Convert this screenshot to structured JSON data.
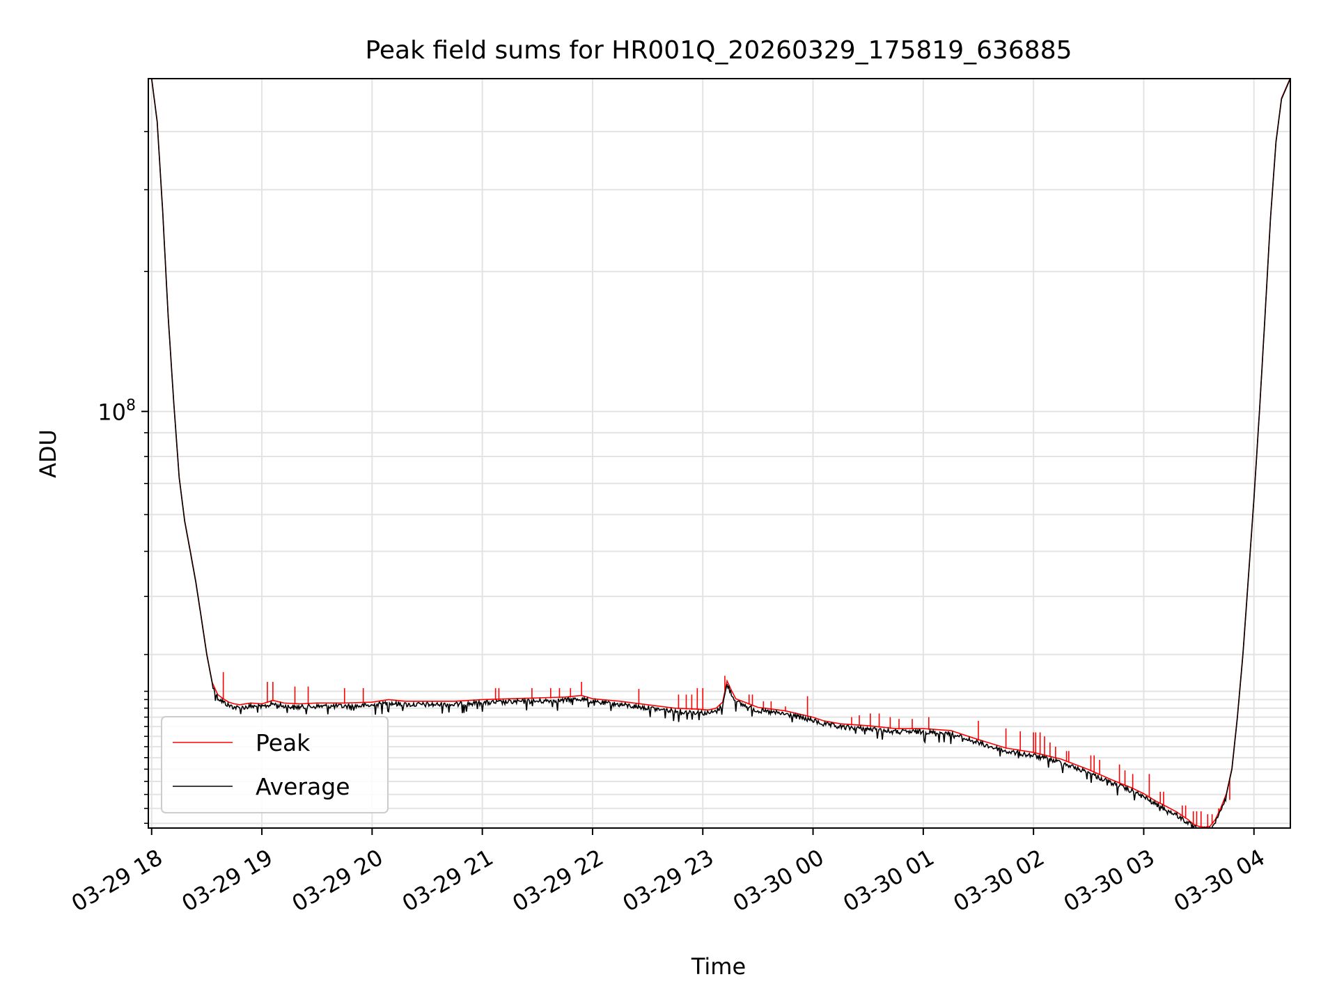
{
  "chart_data": {
    "type": "line",
    "title": "Peak field sums for HR001Q_20260329_175819_636885",
    "xlabel": "Time",
    "ylabel": "ADU",
    "yscale": "log",
    "ylim": [
      12700000.0,
      520000000.0
    ],
    "xlim_hours": [
      -0.03,
      10.33
    ],
    "grid": true,
    "x_ticks": [
      {
        "hour": 0,
        "label": "03-29 18"
      },
      {
        "hour": 1,
        "label": "03-29 19"
      },
      {
        "hour": 2,
        "label": "03-29 20"
      },
      {
        "hour": 3,
        "label": "03-29 21"
      },
      {
        "hour": 4,
        "label": "03-29 22"
      },
      {
        "hour": 5,
        "label": "03-29 23"
      },
      {
        "hour": 6,
        "label": "03-30 00"
      },
      {
        "hour": 7,
        "label": "03-30 01"
      },
      {
        "hour": 8,
        "label": "03-30 02"
      },
      {
        "hour": 9,
        "label": "03-30 03"
      },
      {
        "hour": 10,
        "label": "03-30 04"
      }
    ],
    "y_major_ticks": [
      {
        "value": 100000000,
        "base": "10",
        "exp": "8"
      }
    ],
    "y_minor_ticks": [
      13000000,
      14000000,
      15000000,
      16000000,
      17000000,
      18000000,
      19000000,
      20000000,
      21000000,
      22000000,
      23000000,
      24000000,
      25000000,
      30000000,
      40000000,
      50000000,
      60000000,
      70000000,
      80000000,
      90000000,
      200000000,
      300000000,
      400000000
    ],
    "legend": {
      "placement": "lower-left",
      "entries": [
        {
          "label": "Peak",
          "color": "#ff0000"
        },
        {
          "label": "Average",
          "color": "#000000"
        }
      ]
    },
    "series": [
      {
        "name": "Average",
        "color": "#000000",
        "hours": [
          -0.03,
          0.0,
          0.05,
          0.1,
          0.15,
          0.2,
          0.25,
          0.3,
          0.35,
          0.4,
          0.45,
          0.5,
          0.55,
          0.6,
          0.65,
          0.7,
          0.75,
          0.8,
          0.9,
          1.0,
          1.1,
          1.2,
          1.35,
          1.5,
          1.75,
          2.0,
          2.15,
          2.3,
          2.5,
          2.75,
          3.0,
          3.25,
          3.5,
          3.75,
          3.9,
          4.0,
          4.25,
          4.5,
          4.75,
          4.95,
          5.05,
          5.12,
          5.18,
          5.22,
          5.26,
          5.3,
          5.5,
          5.75,
          6.0,
          6.1,
          6.25,
          6.5,
          6.75,
          7.0,
          7.25,
          7.5,
          7.75,
          8.0,
          8.25,
          8.5,
          8.7,
          8.9,
          9.0,
          9.1,
          9.2,
          9.3,
          9.4,
          9.45,
          9.5,
          9.55,
          9.6,
          9.65,
          9.7,
          9.75,
          9.8,
          9.85,
          9.9,
          9.95,
          10.0,
          10.05,
          10.1,
          10.15,
          10.2,
          10.25,
          10.33
        ],
        "values": [
          520000000,
          520000000,
          420000000,
          270000000,
          160000000,
          105000000,
          72000000,
          58000000,
          50000000,
          43000000,
          36000000,
          30000000,
          26000000,
          24500000,
          24000000,
          23600000,
          23400000,
          23300000,
          23500000,
          23400000,
          23800000,
          23500000,
          23400000,
          23500000,
          23500000,
          23600000,
          23900000,
          23700000,
          23700000,
          23700000,
          23900000,
          24000000,
          24100000,
          24200000,
          24400000,
          24000000,
          23700000,
          23300000,
          22900000,
          22800000,
          22700000,
          22900000,
          23600000,
          26200000,
          25000000,
          24000000,
          23000000,
          22600000,
          21900000,
          21500000,
          21200000,
          21000000,
          20700000,
          20700000,
          20500000,
          19600000,
          18800000,
          18400000,
          17800000,
          16900000,
          16100000,
          15400000,
          15000000,
          14500000,
          14100000,
          13700000,
          13200000,
          12900000,
          12750000,
          12700000,
          12750000,
          13200000,
          14000000,
          15000000,
          17000000,
          22000000,
          30000000,
          44000000,
          65000000,
          100000000,
          160000000,
          260000000,
          380000000,
          470000000,
          520000000
        ]
      },
      {
        "name": "Peak",
        "color": "#ff0000",
        "spikes": [
          {
            "hour": 0.65,
            "value": 27500000
          },
          {
            "hour": 1.05,
            "value": 26200000
          },
          {
            "hour": 1.1,
            "value": 26200000
          },
          {
            "hour": 1.3,
            "value": 25600000
          },
          {
            "hour": 1.42,
            "value": 25600000
          },
          {
            "hour": 1.75,
            "value": 25400000
          },
          {
            "hour": 1.92,
            "value": 25400000
          },
          {
            "hour": 3.12,
            "value": 25400000
          },
          {
            "hour": 3.15,
            "value": 25400000
          },
          {
            "hour": 3.45,
            "value": 25400000
          },
          {
            "hour": 3.62,
            "value": 25400000
          },
          {
            "hour": 3.7,
            "value": 25400000
          },
          {
            "hour": 3.8,
            "value": 25400000
          },
          {
            "hour": 3.9,
            "value": 26200000
          },
          {
            "hour": 4.42,
            "value": 25300000
          },
          {
            "hour": 4.78,
            "value": 24600000
          },
          {
            "hour": 4.85,
            "value": 24600000
          },
          {
            "hour": 4.9,
            "value": 24600000
          },
          {
            "hour": 4.95,
            "value": 25400000
          },
          {
            "hour": 5.0,
            "value": 25400000
          },
          {
            "hour": 5.2,
            "value": 27000000
          },
          {
            "hour": 5.42,
            "value": 24600000
          },
          {
            "hour": 5.45,
            "value": 24600000
          },
          {
            "hour": 5.55,
            "value": 23800000
          },
          {
            "hour": 5.62,
            "value": 23800000
          },
          {
            "hour": 5.75,
            "value": 23200000
          },
          {
            "hour": 5.95,
            "value": 24400000
          },
          {
            "hour": 6.35,
            "value": 22000000
          },
          {
            "hour": 6.42,
            "value": 22200000
          },
          {
            "hour": 6.52,
            "value": 22400000
          },
          {
            "hour": 6.6,
            "value": 22400000
          },
          {
            "hour": 6.7,
            "value": 22000000
          },
          {
            "hour": 6.78,
            "value": 21800000
          },
          {
            "hour": 6.9,
            "value": 21800000
          },
          {
            "hour": 7.05,
            "value": 22000000
          },
          {
            "hour": 7.5,
            "value": 21600000
          },
          {
            "hour": 7.75,
            "value": 20800000
          },
          {
            "hour": 7.88,
            "value": 20500000
          },
          {
            "hour": 8.0,
            "value": 20400000
          },
          {
            "hour": 8.02,
            "value": 20400000
          },
          {
            "hour": 8.06,
            "value": 20400000
          },
          {
            "hour": 8.1,
            "value": 20000000
          },
          {
            "hour": 8.15,
            "value": 19400000
          },
          {
            "hour": 8.2,
            "value": 19000000
          },
          {
            "hour": 8.3,
            "value": 18600000
          },
          {
            "hour": 8.32,
            "value": 18600000
          },
          {
            "hour": 8.52,
            "value": 18200000
          },
          {
            "hour": 8.55,
            "value": 18200000
          },
          {
            "hour": 8.6,
            "value": 17800000
          },
          {
            "hour": 8.78,
            "value": 17400000
          },
          {
            "hour": 8.83,
            "value": 16900000
          },
          {
            "hour": 8.9,
            "value": 16600000
          },
          {
            "hour": 9.05,
            "value": 16600000
          },
          {
            "hour": 9.15,
            "value": 15200000
          },
          {
            "hour": 9.18,
            "value": 15200000
          },
          {
            "hour": 9.35,
            "value": 14200000
          },
          {
            "hour": 9.38,
            "value": 14200000
          },
          {
            "hour": 9.45,
            "value": 13800000
          },
          {
            "hour": 9.48,
            "value": 13800000
          },
          {
            "hour": 9.52,
            "value": 13800000
          },
          {
            "hour": 9.58,
            "value": 13600000
          },
          {
            "hour": 9.62,
            "value": 13600000
          },
          {
            "hour": 9.68,
            "value": 14000000
          },
          {
            "hour": 9.78,
            "value": 14600000
          }
        ]
      }
    ]
  }
}
